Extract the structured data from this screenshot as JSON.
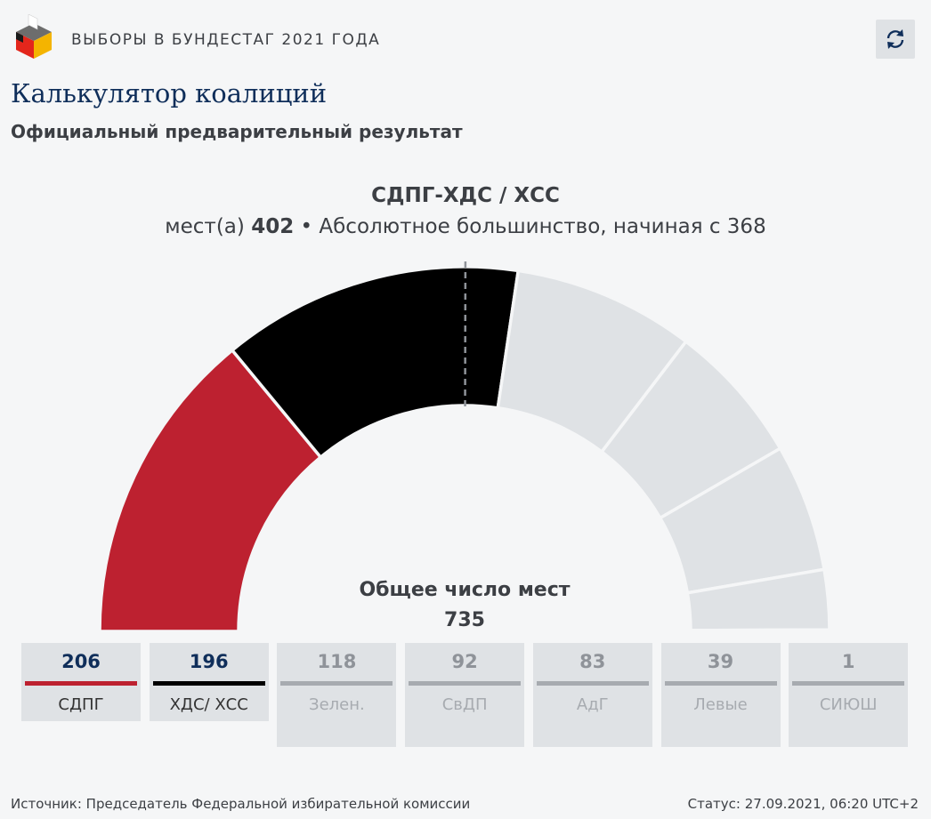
{
  "header": {
    "kicker": "ВЫБОРЫ В БУНДЕСТАГ 2021 ГОДА",
    "reload_icon": "refresh-icon",
    "logo_icon": "ballot-box-logo"
  },
  "title": "Калькулятор коалиций",
  "subtitle": "Официальный предварительный результат",
  "coalition": {
    "name": "СДПГ-ХДС / ХСС",
    "seats_prefix": "мест(а)",
    "seats": "402",
    "majority_text": "• Абсолютное большинство, начиная с 368"
  },
  "total": {
    "label": "Общее число мест",
    "value": "735"
  },
  "chart_data": {
    "type": "semicircle-parliament",
    "total_seats": 735,
    "majority_threshold": 368,
    "categories": [
      "СДПГ",
      "ХДС/ ХСС",
      "Зелен.",
      "СвДП",
      "АдГ",
      "Левые",
      "СИЮШ"
    ],
    "values": [
      206,
      196,
      118,
      92,
      83,
      39,
      1
    ],
    "colors": [
      "#bd2130",
      "#000000",
      "#dfe2e5",
      "#dfe2e5",
      "#dfe2e5",
      "#dfe2e5",
      "#dfe2e5"
    ],
    "selected": [
      true,
      true,
      false,
      false,
      false,
      false,
      false
    ]
  },
  "parties": [
    {
      "seats": "206",
      "name": "СДПГ",
      "color": "#bd2130",
      "selected": true
    },
    {
      "seats": "196",
      "name": "ХДС/ ХСС",
      "color": "#000000",
      "selected": true
    },
    {
      "seats": "118",
      "name": "Зелен.",
      "color": "#a7abb0",
      "selected": false
    },
    {
      "seats": "92",
      "name": "СвДП",
      "color": "#a7abb0",
      "selected": false
    },
    {
      "seats": "83",
      "name": "АдГ",
      "color": "#a7abb0",
      "selected": false
    },
    {
      "seats": "39",
      "name": "Левые",
      "color": "#a7abb0",
      "selected": false
    },
    {
      "seats": "1",
      "name": "СИЮШ",
      "color": "#a7abb0",
      "selected": false
    }
  ],
  "footer": {
    "source": "Источник: Председатель Федеральной избирательной комиссии",
    "status": "Статус: 27.09.2021, 06:20 UTC+2"
  }
}
